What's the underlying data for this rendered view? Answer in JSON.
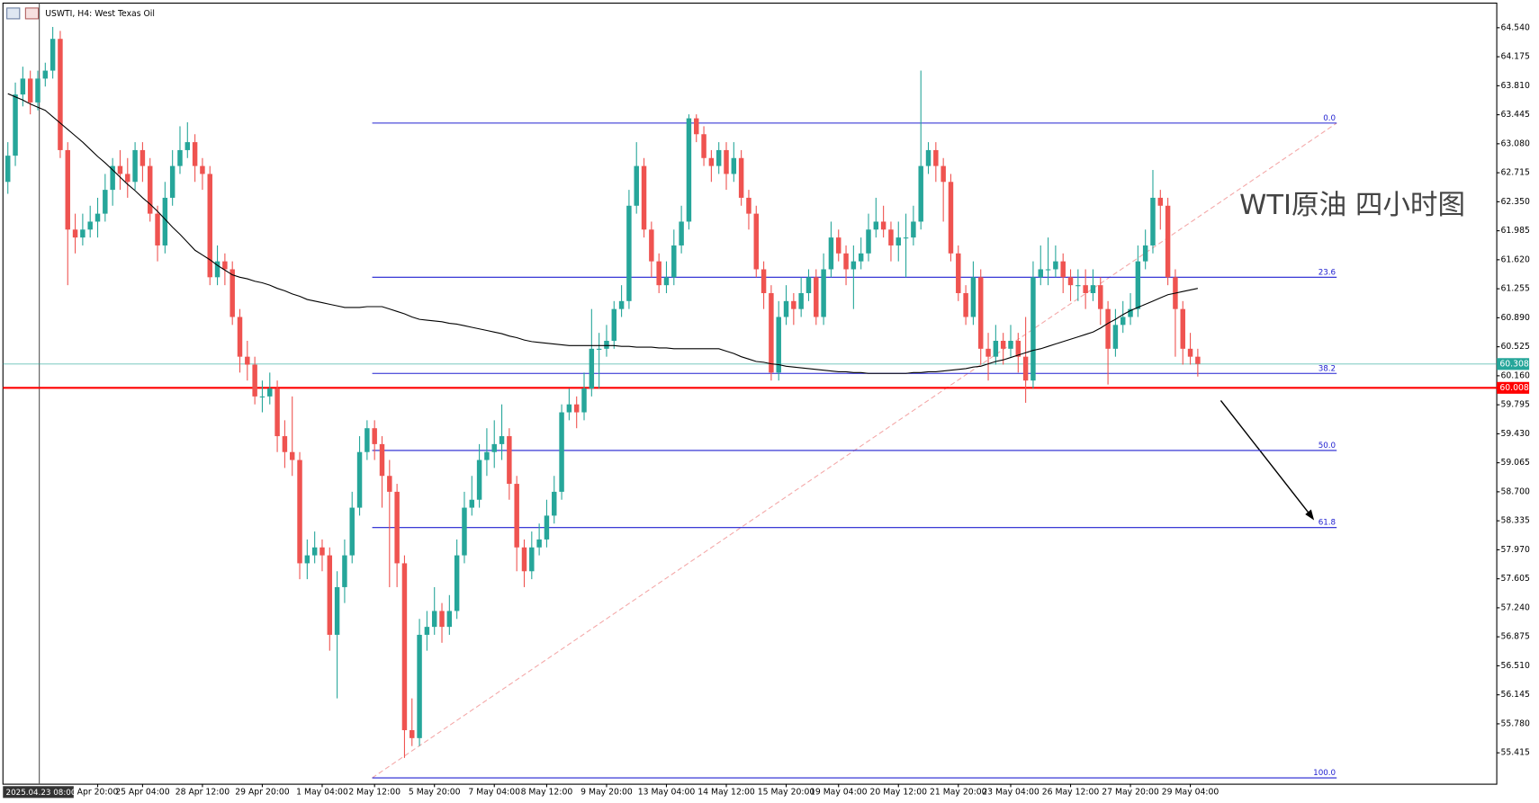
{
  "chart_data": {
    "type": "candlestick",
    "title": "USWTI, H4:  West Texas Oil",
    "annotation": "WTI原油 四小时图",
    "crosshair_label": "2025.04.23 08:00",
    "up_color": "#26a69a",
    "down_color": "#ef5350",
    "ma_color": "#000000",
    "ylim": [
      55.02,
      64.85
    ],
    "yticks": [
      {
        "value": 64.54,
        "label": "64.540"
      },
      {
        "value": 64.175,
        "label": "64.175"
      },
      {
        "value": 63.81,
        "label": "63.810"
      },
      {
        "value": 63.445,
        "label": "63.445"
      },
      {
        "value": 63.08,
        "label": "63.080"
      },
      {
        "value": 62.715,
        "label": "62.715"
      },
      {
        "value": 62.35,
        "label": "62.350"
      },
      {
        "value": 61.985,
        "label": "61.985"
      },
      {
        "value": 61.62,
        "label": "61.620"
      },
      {
        "value": 61.255,
        "label": "61.255"
      },
      {
        "value": 60.89,
        "label": "60.890"
      },
      {
        "value": 60.525,
        "label": "60.525"
      },
      {
        "value": 60.16,
        "label": "60.160"
      },
      {
        "value": 59.795,
        "label": "59.795"
      },
      {
        "value": 59.43,
        "label": "59.430"
      },
      {
        "value": 59.065,
        "label": "59.065"
      },
      {
        "value": 58.7,
        "label": "58.700"
      },
      {
        "value": 58.335,
        "label": "58.335"
      },
      {
        "value": 57.97,
        "label": "57.970"
      },
      {
        "value": 57.605,
        "label": "57.605"
      },
      {
        "value": 57.24,
        "label": "57.240"
      },
      {
        "value": 56.875,
        "label": "56.875"
      },
      {
        "value": 56.51,
        "label": "56.510"
      },
      {
        "value": 56.145,
        "label": "56.145"
      },
      {
        "value": 55.78,
        "label": "55.780"
      },
      {
        "value": 55.415,
        "label": "55.415"
      }
    ],
    "categories": [
      null,
      null,
      null,
      null,
      null,
      null,
      null,
      null,
      null,
      null,
      null,
      null,
      "Apr 20:00",
      null,
      null,
      null,
      null,
      null,
      "25 Apr 04:00",
      null,
      null,
      null,
      null,
      null,
      null,
      null,
      "28 Apr 12:00",
      null,
      null,
      null,
      null,
      null,
      null,
      null,
      "29 Apr 20:00",
      null,
      null,
      null,
      null,
      null,
      null,
      null,
      "1 May 04:00",
      null,
      null,
      null,
      null,
      null,
      null,
      "2 May 12:00",
      null,
      null,
      null,
      null,
      null,
      null,
      null,
      "5 May 20:00",
      null,
      null,
      null,
      null,
      null,
      null,
      null,
      "7 May 04:00",
      null,
      null,
      null,
      null,
      null,
      null,
      "8 May 12:00",
      null,
      null,
      null,
      null,
      null,
      null,
      null,
      "9 May 20:00",
      null,
      null,
      null,
      null,
      null,
      null,
      null,
      "13 May 04:00",
      null,
      null,
      null,
      null,
      null,
      null,
      null,
      "14 May 12:00",
      null,
      null,
      null,
      null,
      null,
      null,
      null,
      "15 May 20:00",
      null,
      null,
      null,
      null,
      null,
      null,
      "19 May 04:00",
      null,
      null,
      null,
      null,
      null,
      null,
      null,
      "20 May 12:00",
      null,
      null,
      null,
      null,
      null,
      null,
      null,
      "21 May 20:00",
      null,
      null,
      null,
      null,
      null,
      null,
      "23 May 04:00",
      null,
      null,
      null,
      null,
      null,
      null,
      null,
      "26 May 12:00",
      null,
      null,
      null,
      null,
      null,
      null,
      null,
      "27 May 20:00",
      null,
      null,
      null,
      null,
      null,
      null,
      null,
      "29 May 04:00",
      null
    ],
    "open": [
      62.6,
      62.93,
      63.7,
      63.9,
      63.6,
      63.9,
      64.0,
      64.4,
      63.0,
      62.0,
      61.9,
      62.0,
      62.1,
      62.2,
      62.5,
      62.8,
      62.7,
      62.6,
      63.0,
      62.8,
      62.2,
      61.8,
      62.4,
      62.8,
      63.0,
      63.1,
      62.8,
      62.7,
      61.4,
      61.6,
      61.5,
      60.9,
      60.4,
      60.3,
      59.9,
      59.9,
      60.0,
      59.4,
      59.2,
      59.1,
      57.8,
      57.9,
      58.0,
      57.9,
      56.9,
      57.5,
      57.9,
      58.5,
      59.2,
      59.5,
      59.3,
      58.9,
      58.7,
      57.8,
      55.7,
      55.6,
      56.9,
      57.0,
      57.2,
      57.0,
      57.2,
      57.9,
      58.5,
      58.6,
      59.1,
      59.2,
      59.3,
      59.4,
      58.8,
      58.0,
      57.7,
      58.0,
      58.1,
      58.4,
      58.7,
      59.7,
      59.8,
      59.7,
      60.0,
      60.5,
      60.5,
      60.6,
      61.0,
      61.1,
      62.3,
      62.8,
      62.0,
      61.6,
      61.3,
      61.4,
      61.8,
      62.1,
      63.4,
      63.2,
      62.9,
      62.8,
      63.0,
      62.7,
      62.9,
      62.4,
      62.2,
      61.5,
      61.2,
      60.2,
      60.9,
      61.1,
      61.0,
      61.2,
      61.4,
      60.9,
      61.5,
      61.9,
      61.7,
      61.5,
      61.6,
      61.7,
      62.0,
      62.1,
      62.0,
      61.8,
      61.9,
      61.9,
      62.1,
      62.8,
      63.0,
      62.8,
      62.6,
      61.7,
      61.2,
      60.9,
      61.4,
      60.5,
      60.4,
      60.6,
      60.5,
      60.6,
      60.4,
      60.1,
      61.4,
      61.5,
      61.5,
      61.6,
      61.4,
      61.3,
      61.3,
      61.2,
      61.3,
      61.0,
      60.5,
      60.8,
      60.9,
      61.0,
      61.6,
      61.8,
      62.4,
      62.3,
      61.4,
      61.0,
      60.5,
      60.4
    ],
    "high": [
      63.1,
      63.85,
      64.05,
      64.0,
      64.0,
      64.1,
      64.55,
      64.5,
      63.1,
      62.2,
      62.2,
      62.3,
      62.4,
      62.7,
      62.9,
      63.0,
      62.9,
      63.1,
      63.1,
      62.9,
      62.3,
      62.6,
      63.0,
      63.3,
      63.35,
      63.2,
      62.9,
      62.8,
      61.8,
      61.7,
      61.6,
      61.0,
      60.6,
      60.4,
      60.1,
      60.2,
      60.1,
      59.6,
      59.9,
      59.2,
      58.1,
      58.2,
      58.1,
      58.0,
      57.7,
      58.1,
      58.7,
      59.4,
      59.6,
      59.6,
      59.4,
      59.1,
      58.8,
      57.9,
      56.1,
      57.1,
      57.2,
      57.5,
      57.3,
      57.4,
      58.1,
      58.7,
      58.9,
      59.3,
      59.5,
      59.6,
      59.8,
      59.5,
      58.9,
      58.1,
      58.2,
      58.3,
      58.6,
      58.9,
      59.8,
      60.0,
      59.9,
      60.2,
      61.0,
      60.7,
      60.8,
      61.1,
      61.3,
      62.5,
      63.1,
      62.9,
      62.1,
      61.7,
      61.6,
      62.0,
      62.3,
      63.45,
      63.45,
      63.3,
      63.0,
      63.1,
      63.1,
      63.1,
      63.0,
      62.5,
      62.3,
      61.6,
      61.3,
      61.1,
      61.3,
      61.2,
      61.4,
      61.5,
      61.5,
      61.7,
      62.1,
      62.0,
      61.8,
      61.8,
      61.9,
      62.2,
      62.4,
      62.3,
      62.1,
      62.1,
      62.2,
      62.3,
      64.0,
      63.1,
      63.1,
      62.9,
      62.7,
      61.8,
      61.3,
      61.6,
      61.5,
      60.7,
      60.8,
      60.7,
      60.8,
      60.7,
      60.9,
      61.6,
      61.8,
      61.9,
      61.8,
      61.7,
      61.5,
      61.5,
      61.5,
      61.5,
      61.4,
      61.1,
      61.0,
      61.1,
      61.2,
      61.8,
      62.0,
      62.75,
      62.5,
      62.4,
      61.5,
      61.1,
      60.7,
      60.5
    ],
    "low": [
      62.45,
      62.8,
      63.55,
      63.45,
      63.5,
      63.8,
      63.9,
      62.9,
      61.3,
      61.7,
      61.8,
      61.9,
      61.9,
      62.1,
      62.3,
      62.5,
      62.4,
      62.5,
      62.6,
      62.1,
      61.6,
      61.7,
      62.3,
      62.7,
      62.9,
      62.6,
      62.5,
      61.3,
      61.3,
      61.3,
      60.8,
      60.2,
      60.1,
      59.8,
      59.7,
      59.8,
      59.2,
      59.0,
      58.9,
      57.6,
      57.6,
      57.8,
      57.7,
      56.7,
      56.1,
      57.3,
      57.8,
      58.4,
      59.1,
      59.1,
      58.5,
      57.5,
      57.5,
      55.35,
      55.5,
      55.5,
      56.7,
      56.9,
      56.8,
      56.9,
      57.1,
      57.8,
      58.4,
      58.5,
      58.9,
      59.0,
      59.1,
      58.6,
      57.7,
      57.5,
      57.6,
      57.9,
      58.0,
      58.3,
      58.6,
      59.6,
      59.5,
      59.6,
      59.9,
      60.0,
      60.4,
      60.5,
      60.9,
      61.0,
      62.2,
      61.9,
      61.4,
      61.2,
      61.2,
      61.3,
      61.7,
      62.0,
      63.1,
      62.8,
      62.6,
      62.7,
      62.5,
      62.6,
      62.3,
      62.0,
      61.4,
      61.0,
      60.1,
      60.1,
      60.8,
      60.8,
      60.9,
      61.1,
      60.8,
      60.8,
      61.4,
      61.6,
      61.3,
      61.0,
      61.5,
      61.6,
      61.9,
      61.9,
      61.6,
      61.6,
      61.4,
      61.8,
      62.0,
      62.7,
      62.6,
      62.1,
      61.6,
      61.1,
      60.8,
      60.8,
      60.3,
      60.1,
      60.3,
      60.3,
      60.4,
      60.2,
      59.82,
      60.0,
      61.3,
      61.3,
      61.4,
      61.2,
      61.1,
      61.1,
      61.0,
      61.1,
      60.8,
      60.05,
      60.4,
      60.7,
      60.8,
      60.9,
      61.5,
      61.7,
      62.0,
      61.3,
      60.4,
      60.3,
      60.3,
      60.15
    ],
    "close": [
      62.93,
      63.7,
      63.9,
      63.6,
      63.9,
      64.0,
      64.4,
      63.0,
      62.0,
      61.9,
      62.0,
      62.1,
      62.2,
      62.5,
      62.8,
      62.7,
      62.6,
      63.0,
      62.8,
      62.2,
      61.8,
      62.4,
      62.8,
      63.0,
      63.1,
      62.8,
      62.7,
      61.4,
      61.6,
      61.5,
      60.9,
      60.4,
      60.3,
      59.9,
      59.9,
      60.0,
      59.4,
      59.2,
      59.1,
      57.8,
      57.9,
      58.0,
      57.9,
      56.9,
      57.5,
      57.9,
      58.5,
      59.2,
      59.5,
      59.3,
      58.9,
      58.7,
      57.8,
      55.7,
      55.6,
      56.9,
      57.0,
      57.2,
      57.0,
      57.2,
      57.9,
      58.5,
      58.6,
      59.1,
      59.2,
      59.3,
      59.4,
      58.8,
      58.0,
      57.7,
      58.0,
      58.1,
      58.4,
      58.7,
      59.7,
      59.8,
      59.7,
      60.0,
      60.5,
      60.5,
      60.6,
      61.0,
      61.1,
      62.3,
      62.8,
      62.0,
      61.6,
      61.3,
      61.4,
      61.8,
      62.1,
      63.4,
      63.2,
      62.9,
      62.8,
      63.0,
      62.7,
      62.9,
      62.4,
      62.2,
      61.5,
      61.2,
      60.2,
      60.9,
      61.1,
      61.0,
      61.2,
      61.4,
      60.9,
      61.5,
      61.9,
      61.7,
      61.5,
      61.6,
      61.7,
      62.0,
      62.1,
      62.0,
      61.8,
      61.9,
      61.9,
      62.1,
      62.8,
      63.0,
      62.8,
      62.6,
      61.7,
      61.2,
      60.9,
      61.4,
      60.5,
      60.4,
      60.6,
      60.5,
      60.6,
      60.4,
      60.1,
      61.4,
      61.5,
      61.5,
      61.6,
      61.4,
      61.3,
      61.3,
      61.2,
      61.3,
      61.0,
      60.5,
      60.8,
      60.9,
      61.0,
      61.6,
      61.8,
      62.4,
      62.3,
      61.4,
      61.0,
      60.5,
      60.4,
      60.31
    ],
    "moving_average": [
      63.71,
      63.67,
      63.63,
      63.58,
      63.54,
      63.5,
      63.42,
      63.34,
      63.26,
      63.18,
      63.1,
      63.01,
      62.92,
      62.84,
      62.75,
      62.66,
      62.57,
      62.49,
      62.4,
      62.32,
      62.23,
      62.13,
      62.03,
      61.94,
      61.84,
      61.74,
      61.68,
      61.62,
      61.55,
      61.49,
      61.43,
      61.4,
      61.38,
      61.35,
      61.33,
      61.3,
      61.26,
      61.23,
      61.19,
      61.16,
      61.12,
      61.1,
      61.08,
      61.06,
      61.04,
      61.02,
      61.02,
      61.02,
      61.03,
      61.03,
      61.03,
      61.0,
      60.97,
      60.94,
      60.9,
      60.87,
      60.86,
      60.85,
      60.84,
      60.82,
      60.81,
      60.79,
      60.77,
      60.75,
      60.73,
      60.71,
      60.69,
      60.66,
      60.64,
      60.61,
      60.59,
      60.58,
      60.57,
      60.56,
      60.55,
      60.54,
      60.54,
      60.54,
      60.54,
      60.54,
      60.54,
      60.54,
      60.53,
      60.53,
      60.52,
      60.52,
      60.52,
      60.51,
      60.51,
      60.5,
      60.5,
      60.5,
      60.5,
      60.5,
      60.5,
      60.5,
      60.47,
      60.44,
      60.4,
      60.37,
      60.34,
      60.33,
      60.31,
      60.3,
      60.28,
      60.27,
      60.26,
      60.25,
      60.24,
      60.23,
      60.22,
      60.21,
      60.21,
      60.2,
      60.2,
      60.19,
      60.19,
      60.19,
      60.19,
      60.19,
      60.19,
      60.2,
      60.2,
      60.21,
      60.21,
      60.22,
      60.23,
      60.24,
      60.25,
      60.27,
      60.28,
      60.31,
      60.34,
      60.36,
      60.39,
      60.42,
      60.45,
      60.48,
      60.5,
      60.53,
      60.56,
      60.59,
      60.62,
      60.65,
      60.68,
      60.71,
      60.76,
      60.82,
      60.87,
      60.93,
      60.98,
      61.02,
      61.06,
      61.1,
      61.14,
      61.18,
      61.2,
      61.22,
      61.24,
      61.26
    ],
    "fibonacci": {
      "color": "#2020d0",
      "levels": [
        {
          "label": "0.0",
          "value": 63.34
        },
        {
          "label": "23.6",
          "value": 61.4
        },
        {
          "label": "38.2",
          "value": 60.19
        },
        {
          "label": "50.0",
          "value": 59.22
        },
        {
          "label": "61.8",
          "value": 58.25
        },
        {
          "label": "100.0",
          "value": 55.1
        }
      ]
    },
    "price_lines": [
      {
        "label": "60.308",
        "value": 60.308,
        "color": "#26a69a"
      },
      {
        "label": "60.008",
        "value": 60.008,
        "color": "#ff0000"
      }
    ]
  }
}
